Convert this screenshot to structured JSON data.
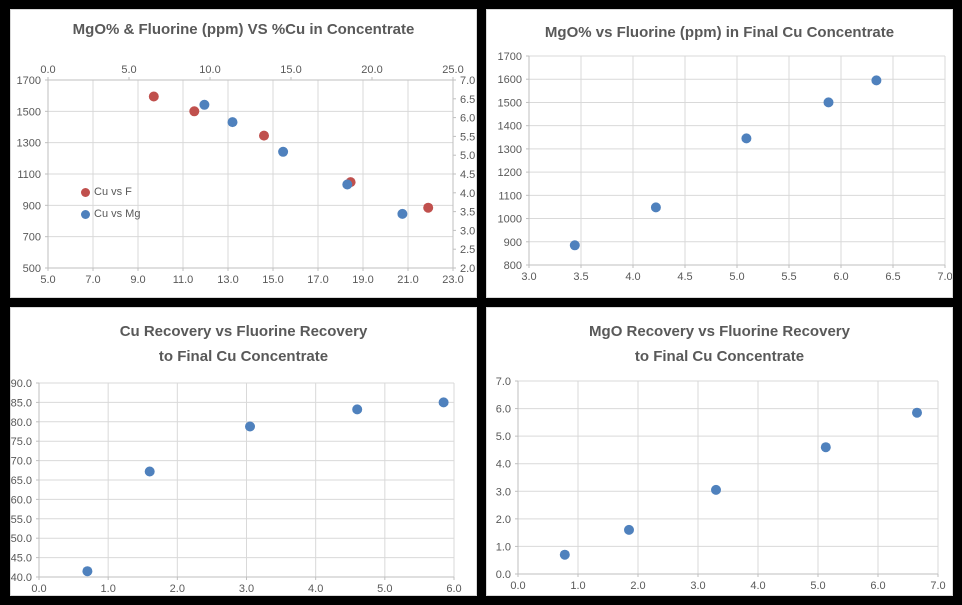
{
  "colors": {
    "frame_bg": "#000000",
    "panel_bg": "#FFFFFF",
    "panel_border": "#D9D9D9",
    "gridline": "#D9D9D9",
    "axis_line": "#BFBFBF",
    "tick_label": "#595959",
    "title": "#595959",
    "series_red": "#C0504D",
    "series_blue": "#4F81BD"
  },
  "chart_data": [
    {
      "type": "scatter",
      "title": "MgO% & Fluorine (ppm) VS %Cu in Concentrate",
      "title_lines": [
        "MgO% & Fluorine (ppm) VS %Cu in Concentrate"
      ],
      "grid": true,
      "legend_position": "inside-left",
      "x_axis": {
        "min": 5,
        "max": 23,
        "step": 2,
        "decimals": 1,
        "side": "bottom"
      },
      "x2_axis": {
        "min": 0,
        "max": 25,
        "step": 5,
        "decimals": 1,
        "side": "top"
      },
      "y_axis": {
        "min": 500,
        "max": 1700,
        "step": 200,
        "decimals": 0,
        "side": "left"
      },
      "y2_axis": {
        "min": 2,
        "max": 7,
        "step": 0.5,
        "decimals": 1,
        "side": "right"
      },
      "series": [
        {
          "name": "Cu vs F",
          "color": "#C0504D",
          "x_on": "x",
          "y_on": "y",
          "points": [
            [
              9.7,
              1595
            ],
            [
              11.5,
              1500
            ],
            [
              14.6,
              1345
            ],
            [
              18.45,
              1048
            ],
            [
              21.9,
              885
            ]
          ]
        },
        {
          "name": "Cu vs Mg",
          "color": "#4F81BD",
          "x_on": "x",
          "y_on": "y2",
          "points": [
            [
              11.95,
              6.34
            ],
            [
              13.2,
              5.88
            ],
            [
              15.45,
              5.09
            ],
            [
              18.3,
              4.22
            ],
            [
              20.75,
              3.44
            ]
          ]
        }
      ]
    },
    {
      "type": "scatter",
      "title": "MgO% vs Fluorine (ppm) in Final Cu Concentrate",
      "title_lines": [
        "MgO% vs Fluorine (ppm) in Final Cu Concentrate"
      ],
      "grid": true,
      "x_axis": {
        "min": 3,
        "max": 7,
        "step": 0.5,
        "decimals": 1,
        "side": "bottom"
      },
      "y_axis": {
        "min": 800,
        "max": 1700,
        "step": 100,
        "decimals": 0,
        "side": "left"
      },
      "series": [
        {
          "color": "#4F81BD",
          "x_on": "x",
          "y_on": "y",
          "points": [
            [
              3.44,
              885
            ],
            [
              4.22,
              1048
            ],
            [
              5.09,
              1345
            ],
            [
              5.88,
              1500
            ],
            [
              6.34,
              1595
            ]
          ]
        }
      ]
    },
    {
      "type": "scatter",
      "title": "Cu Recovery vs Fluorine Recovery to Final Cu Concentrate",
      "title_lines": [
        "Cu Recovery vs Fluorine Recovery",
        "to Final Cu Concentrate"
      ],
      "grid": true,
      "x_axis": {
        "min": 0,
        "max": 6,
        "step": 1,
        "decimals": 1,
        "side": "bottom"
      },
      "y_axis": {
        "min": 40,
        "max": 90,
        "step": 5,
        "decimals": 1,
        "side": "left"
      },
      "series": [
        {
          "color": "#4F81BD",
          "x_on": "x",
          "y_on": "y",
          "points": [
            [
              0.7,
              41.5
            ],
            [
              1.6,
              67.2
            ],
            [
              3.05,
              78.8
            ],
            [
              4.6,
              83.2
            ],
            [
              5.85,
              85.0
            ]
          ]
        }
      ]
    },
    {
      "type": "scatter",
      "title": "MgO Recovery vs Fluorine Recovery to Final Cu Concentrate",
      "title_lines": [
        "MgO Recovery vs Fluorine Recovery",
        "to Final Cu Concentrate"
      ],
      "grid": true,
      "x_axis": {
        "min": 0,
        "max": 7,
        "step": 1,
        "decimals": 1,
        "side": "bottom"
      },
      "y_axis": {
        "min": 0,
        "max": 7,
        "step": 1,
        "decimals": 1,
        "side": "left"
      },
      "series": [
        {
          "color": "#4F81BD",
          "x_on": "x",
          "y_on": "y",
          "points": [
            [
              0.78,
              0.7
            ],
            [
              1.85,
              1.6
            ],
            [
              3.3,
              3.05
            ],
            [
              5.13,
              4.6
            ],
            [
              6.65,
              5.85
            ]
          ]
        }
      ]
    }
  ]
}
